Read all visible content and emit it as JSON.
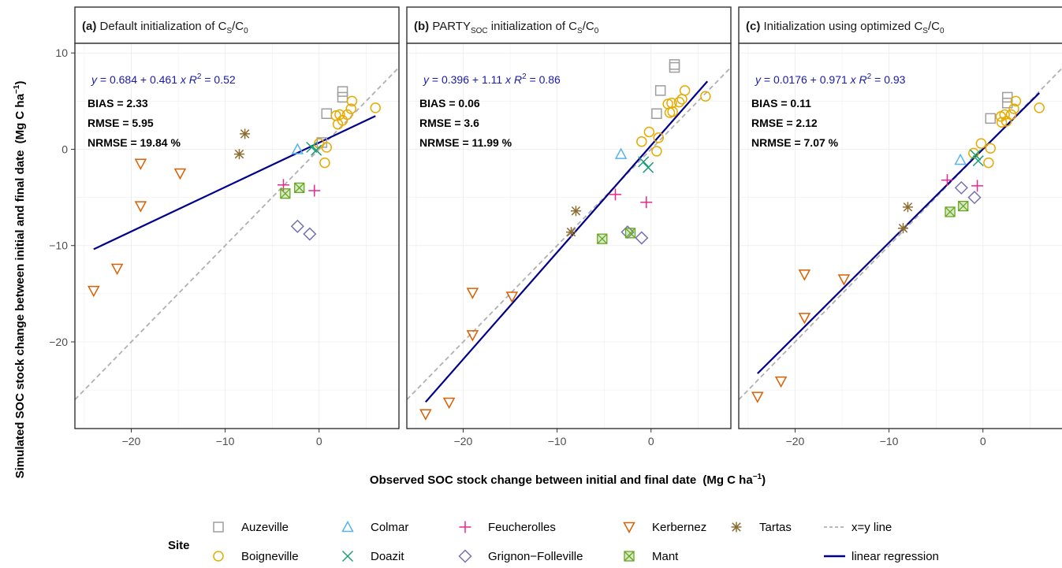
{
  "chart_data": {
    "type": "scatter",
    "xlabel": "Observed SOC stock change between initial and final date",
    "xlabel_unit": "(Mg C ha",
    "ylabel": "Simulated SOC stock change between initial and final date",
    "ylabel_unit": "(Mg C ha",
    "unit_exponent": "−1",
    "unit_close": ")",
    "xlim": [
      -26,
      8.5
    ],
    "ylim": [
      -29,
      11
    ],
    "x_ticks": [
      -20,
      -10,
      0
    ],
    "y_ticks": [
      10,
      0,
      -10,
      -20
    ],
    "tick_labels_x": [
      "−20",
      "−10",
      "0"
    ],
    "tick_labels_y": [
      "10",
      "0",
      "−10",
      "−20"
    ],
    "grid": true,
    "colors": {
      "Auzeville": "#9e9e9e",
      "Boigneville": "#e6ab02",
      "Colmar": "#56b4e9",
      "Doazit": "#1b9e77",
      "Feucherolles": "#e7298a",
      "Grignon-Folleville": "#7570b3",
      "Kerbernez": "#d95f02",
      "Mant": "#66a61e",
      "Tartas": "#8c6d31",
      "regression": "#00008b",
      "identity": "#b0b0b0"
    },
    "panels": [
      {
        "label": "(a)",
        "title_pre": "Default initialization of C",
        "title_sub1": "S",
        "title_mid": "/C",
        "title_sub2": "0",
        "equation": {
          "y": "y",
          "eq": " = 0.684 + 0.461 ",
          "x": "x",
          "r": "R",
          "r_exp": "2",
          "r_val": " = 0.52"
        },
        "stats": [
          "BIAS = 2.33",
          "RMSE = 5.95",
          "NRMSE = 19.84 %"
        ],
        "regression": {
          "intercept": 0.684,
          "slope": 0.461
        },
        "points": {
          "Auzeville": [
            [
              2.5,
              6.0
            ],
            [
              2.5,
              5.4
            ],
            [
              0.8,
              3.7
            ],
            [
              0.3,
              0.7
            ]
          ],
          "Boigneville": [
            [
              1.8,
              3.5
            ],
            [
              2.2,
              3.6
            ],
            [
              2.5,
              3.0
            ],
            [
              2.0,
              2.6
            ],
            [
              3.0,
              3.6
            ],
            [
              3.4,
              4.2
            ],
            [
              3.5,
              5.0
            ],
            [
              6.0,
              4.3
            ],
            [
              0.0,
              0.6
            ],
            [
              0.8,
              0.2
            ],
            [
              0.6,
              -1.4
            ]
          ],
          "Colmar": [
            [
              -2.3,
              0.0
            ]
          ],
          "Doazit": [
            [
              -0.8,
              0.2
            ],
            [
              -0.3,
              -0.1
            ]
          ],
          "Feucherolles": [
            [
              -3.8,
              -3.7
            ],
            [
              -0.5,
              -4.3
            ]
          ],
          "Grignon-Folleville": [
            [
              -2.3,
              -8.0
            ],
            [
              -1.0,
              -8.8
            ]
          ],
          "Kerbernez": [
            [
              -24.0,
              -14.7
            ],
            [
              -21.5,
              -12.4
            ],
            [
              -19.0,
              -1.5
            ],
            [
              -19.0,
              -5.9
            ],
            [
              -14.8,
              -2.5
            ]
          ],
          "Mant": [
            [
              -3.6,
              -4.6
            ],
            [
              -2.1,
              -4.0
            ]
          ],
          "Tartas": [
            [
              -8.5,
              -0.5
            ],
            [
              -7.9,
              1.6
            ]
          ]
        }
      },
      {
        "label": "(b)",
        "title_pre": "PARTY",
        "title_sub0": "SOC",
        "title_post": " initialization of C",
        "title_sub1": "S",
        "title_mid": "/C",
        "title_sub2": "0",
        "equation": {
          "y": "y",
          "eq": " = 0.396 + 1.11 ",
          "x": "x",
          "r": "R",
          "r_exp": "2",
          "r_val": " = 0.86"
        },
        "stats": [
          "BIAS = 0.06",
          "RMSE = 3.6",
          "NRMSE = 11.99 %"
        ],
        "regression": {
          "intercept": 0.396,
          "slope": 1.11
        },
        "points": {
          "Auzeville": [
            [
              2.5,
              8.8
            ],
            [
              2.5,
              8.5
            ],
            [
              1.0,
              6.1
            ],
            [
              0.6,
              3.7
            ]
          ],
          "Boigneville": [
            [
              1.8,
              4.7
            ],
            [
              2.2,
              4.8
            ],
            [
              2.3,
              3.9
            ],
            [
              2.0,
              3.8
            ],
            [
              3.0,
              4.9
            ],
            [
              3.3,
              5.2
            ],
            [
              3.6,
              6.1
            ],
            [
              5.8,
              5.5
            ],
            [
              -0.2,
              1.8
            ],
            [
              0.8,
              1.2
            ],
            [
              -1.0,
              0.8
            ],
            [
              0.6,
              -0.2
            ]
          ],
          "Colmar": [
            [
              -3.2,
              -0.5
            ]
          ],
          "Doazit": [
            [
              -0.8,
              -1.3
            ],
            [
              -0.3,
              -1.9
            ]
          ],
          "Feucherolles": [
            [
              -3.8,
              -4.7
            ],
            [
              -0.5,
              -5.5
            ]
          ],
          "Grignon-Folleville": [
            [
              -2.5,
              -8.6
            ],
            [
              -1.0,
              -9.2
            ]
          ],
          "Kerbernez": [
            [
              -24.0,
              -27.5
            ],
            [
              -21.5,
              -26.3
            ],
            [
              -19.0,
              -14.9
            ],
            [
              -19.0,
              -19.3
            ],
            [
              -14.8,
              -15.3
            ]
          ],
          "Mant": [
            [
              -5.2,
              -9.3
            ],
            [
              -2.2,
              -8.7
            ]
          ],
          "Tartas": [
            [
              -8.0,
              -6.4
            ],
            [
              -8.5,
              -8.6
            ]
          ]
        }
      },
      {
        "label": "(c)",
        "title_pre": "Initialization using optimized C",
        "title_sub1": "S",
        "title_mid": "/C",
        "title_sub2": "0",
        "equation": {
          "y": "y",
          "eq": " = 0.0176 + 0.971 ",
          "x": "x",
          "r": "R",
          "r_exp": "2",
          "r_val": " = 0.93"
        },
        "stats": [
          "BIAS = 0.11",
          "RMSE = 2.12",
          "NRMSE = 7.07 %"
        ],
        "regression": {
          "intercept": 0.0176,
          "slope": 0.971
        },
        "points": {
          "Auzeville": [
            [
              2.6,
              5.4
            ],
            [
              2.6,
              4.8
            ],
            [
              0.8,
              3.2
            ]
          ],
          "Boigneville": [
            [
              1.9,
              3.4
            ],
            [
              2.3,
              3.6
            ],
            [
              2.5,
              2.9
            ],
            [
              2.0,
              2.8
            ],
            [
              3.0,
              3.6
            ],
            [
              3.3,
              4.2
            ],
            [
              3.5,
              5.0
            ],
            [
              6.0,
              4.3
            ],
            [
              -0.2,
              0.6
            ],
            [
              0.8,
              0.1
            ],
            [
              -1.0,
              -0.4
            ],
            [
              0.6,
              -1.4
            ]
          ],
          "Colmar": [
            [
              -2.4,
              -1.1
            ]
          ],
          "Doazit": [
            [
              -0.8,
              -0.6
            ],
            [
              -0.5,
              -1.2
            ]
          ],
          "Feucherolles": [
            [
              -3.8,
              -3.2
            ],
            [
              -0.6,
              -3.8
            ]
          ],
          "Grignon-Folleville": [
            [
              -2.3,
              -4.0
            ],
            [
              -0.9,
              -5.0
            ]
          ],
          "Kerbernez": [
            [
              -24.0,
              -25.7
            ],
            [
              -21.5,
              -24.1
            ],
            [
              -19.0,
              -13.0
            ],
            [
              -19.0,
              -17.5
            ],
            [
              -14.8,
              -13.5
            ]
          ],
          "Mant": [
            [
              -3.5,
              -6.5
            ],
            [
              -2.1,
              -5.9
            ]
          ],
          "Tartas": [
            [
              -8.0,
              -6.0
            ],
            [
              -8.5,
              -8.2
            ]
          ]
        }
      }
    ],
    "legend": {
      "title": "Site",
      "position": "bottom",
      "sites": [
        {
          "name": "Auzeville",
          "shape": "square"
        },
        {
          "name": "Boigneville",
          "shape": "circle"
        },
        {
          "name": "Colmar",
          "shape": "triangle-up"
        },
        {
          "name": "Doazit",
          "shape": "x"
        },
        {
          "name": "Feucherolles",
          "shape": "plus"
        },
        {
          "name": "Grignon−Folleville",
          "shape": "diamond"
        },
        {
          "name": "Kerbernez",
          "shape": "triangle-down"
        },
        {
          "name": "Mant",
          "shape": "square-x"
        },
        {
          "name": "Tartas",
          "shape": "asterisk"
        }
      ],
      "lines": [
        {
          "name": "x=y line",
          "style": "dashed"
        },
        {
          "name": "linear regression",
          "style": "solid"
        }
      ]
    }
  }
}
